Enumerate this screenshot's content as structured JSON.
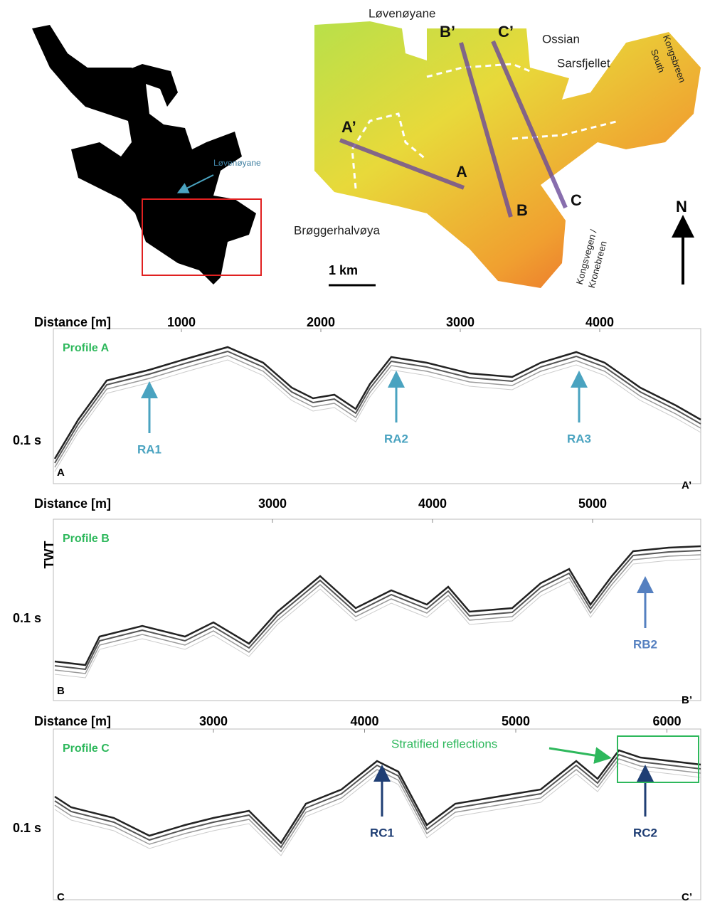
{
  "overview_map": {
    "label": "Løvenøyane"
  },
  "bathymetry_map": {
    "labels": {
      "lovenoyane": "Løvenøyane",
      "ossian": [
        "Ossian",
        "Sarsfjellet"
      ],
      "kongsbreen": [
        "Kongsbreen",
        "South"
      ],
      "broggerhalvoya": "Brøggerhalvøya",
      "kongsvegen": [
        "Kongsvegen /",
        "Kronebreen"
      ]
    },
    "profile_ends": {
      "a": "A",
      "a_prime": "A’",
      "b": "B",
      "b_prime": "B’",
      "c": "C",
      "c_prime": "C’"
    },
    "scale_bar": "1 km",
    "north": "N"
  },
  "profiles": [
    {
      "title": "Profile A",
      "axis_label": "Distance [m]",
      "distance_ticks": [
        1000,
        2000,
        3000,
        4000
      ],
      "time_label": "0.1 s",
      "start": "A",
      "end": "A’",
      "features": [
        "RA1",
        "RA2",
        "RA3"
      ]
    },
    {
      "title": "Profile B",
      "axis_label": "Distance [m]",
      "distance_ticks": [
        3000,
        4000,
        5000
      ],
      "time_label": "0.1 s",
      "twt_label": "TWT",
      "start": "B",
      "end": "B’",
      "features": [
        "RB2"
      ]
    },
    {
      "title": "Profile C",
      "axis_label": "Distance [m]",
      "distance_ticks": [
        3000,
        4000,
        5000,
        6000
      ],
      "time_label": "0.1 s",
      "start": "C",
      "end": "C’",
      "features": [
        "RC1",
        "RC2"
      ],
      "annotation": "Stratified reflections"
    }
  ]
}
